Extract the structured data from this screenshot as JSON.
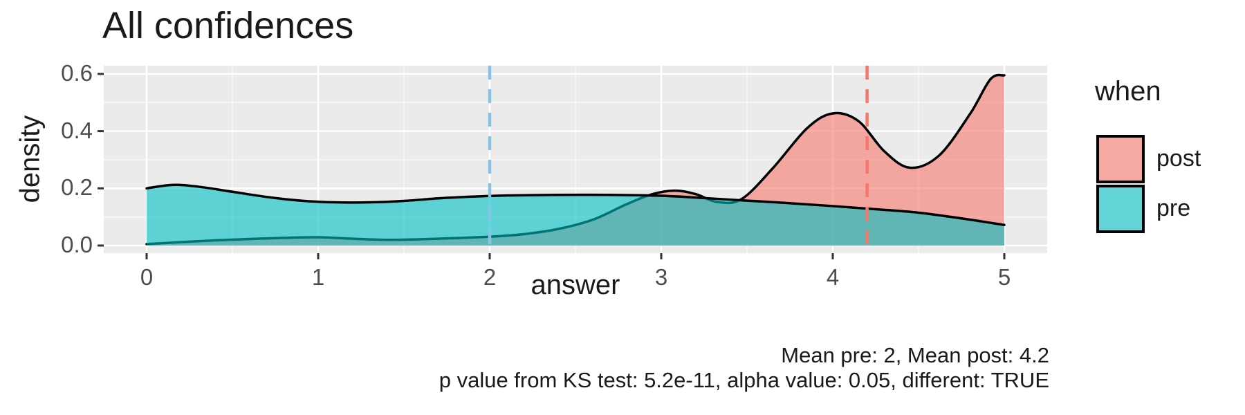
{
  "chart_data": {
    "type": "area",
    "title": "All confidences",
    "xlabel": "answer",
    "ylabel": "density",
    "x_ticks": [
      0,
      1,
      2,
      3,
      4,
      5
    ],
    "x_tick_labels": [
      "0",
      "1",
      "2",
      "3",
      "4",
      "5"
    ],
    "x_minor_ticks": [
      0.5,
      1.5,
      2.5,
      3.5,
      4.5
    ],
    "y_ticks": [
      0.0,
      0.2,
      0.4,
      0.6
    ],
    "y_tick_labels": [
      "0.0",
      "0.2",
      "0.4",
      "0.6"
    ],
    "y_minor_ticks": [
      0.1,
      0.3,
      0.5
    ],
    "xlim": [
      -0.25,
      5.25
    ],
    "ylim": [
      -0.027,
      0.629
    ],
    "panel_bg": "#EBEBEB",
    "grid_major_color": "#FFFFFF",
    "grid_minor_color": "#FFFFFF",
    "outline_color": "#000000",
    "fill_alpha": 0.6,
    "tick_mark_color": "#333333",
    "legend": {
      "title": "when",
      "position": "right",
      "entries": [
        {
          "label": "post",
          "color": "#F8766D"
        },
        {
          "label": "pre",
          "color": "#00BFC4"
        }
      ]
    },
    "series": [
      {
        "name": "post",
        "fill": "#F8766D",
        "mean": 4.2,
        "mean_line_color": "#F4786B",
        "x": [
          0,
          0.2,
          0.4,
          0.6,
          0.8,
          1.0,
          1.2,
          1.4,
          1.6,
          1.8,
          2.0,
          2.2,
          2.4,
          2.6,
          2.8,
          2.95,
          3.08,
          3.2,
          3.33,
          3.47,
          3.65,
          3.85,
          4.0,
          4.15,
          4.3,
          4.45,
          4.62,
          4.8,
          4.92,
          5.0
        ],
        "y": [
          0.005,
          0.012,
          0.018,
          0.023,
          0.027,
          0.029,
          0.024,
          0.02,
          0.022,
          0.026,
          0.031,
          0.04,
          0.058,
          0.09,
          0.145,
          0.18,
          0.192,
          0.18,
          0.152,
          0.163,
          0.27,
          0.41,
          0.462,
          0.435,
          0.33,
          0.272,
          0.315,
          0.46,
          0.582,
          0.595
        ]
      },
      {
        "name": "pre",
        "fill": "#00BFC4",
        "mean": 2,
        "mean_line_color": "#85C4E8",
        "x": [
          0,
          0.15,
          0.3,
          0.5,
          0.7,
          0.9,
          1.1,
          1.3,
          1.5,
          1.7,
          1.9,
          2.1,
          2.4,
          2.7,
          3.0,
          3.25,
          3.5,
          3.75,
          4.0,
          4.25,
          4.5,
          4.75,
          5.0
        ],
        "y": [
          0.2,
          0.212,
          0.206,
          0.188,
          0.17,
          0.157,
          0.151,
          0.151,
          0.156,
          0.165,
          0.171,
          0.175,
          0.177,
          0.177,
          0.174,
          0.166,
          0.157,
          0.148,
          0.138,
          0.127,
          0.115,
          0.095,
          0.072
        ]
      }
    ]
  },
  "caption": {
    "line1": "Mean pre: 2, Mean post: 4.2",
    "line2": "p value from KS test: 5.2e-11, alpha value: 0.05, different: TRUE"
  }
}
